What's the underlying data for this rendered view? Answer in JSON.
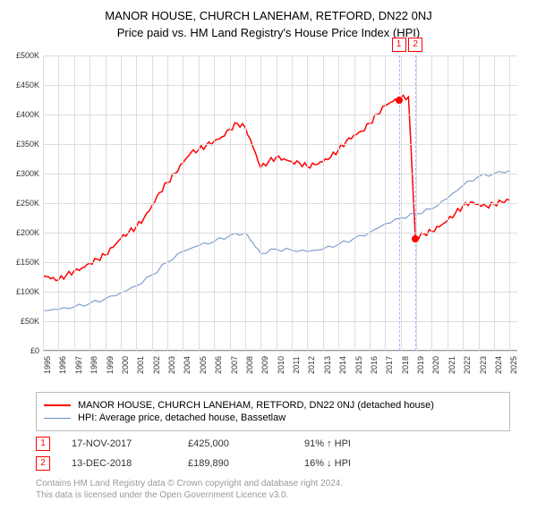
{
  "title": "MANOR HOUSE, CHURCH LANEHAM, RETFORD, DN22 0NJ",
  "subtitle": "Price paid vs. HM Land Registry's House Price Index (HPI)",
  "chart": {
    "type": "line",
    "background_color": "#ffffff",
    "grid_color": "#dddddd",
    "axis_color": "#999999",
    "label_fontsize": 9,
    "x": {
      "min": 1995,
      "max": 2025.5,
      "ticks": [
        1995,
        1996,
        1997,
        1998,
        1999,
        2000,
        2001,
        2002,
        2003,
        2004,
        2005,
        2006,
        2007,
        2008,
        2009,
        2010,
        2011,
        2012,
        2013,
        2014,
        2015,
        2016,
        2017,
        2018,
        2019,
        2020,
        2021,
        2022,
        2023,
        2024,
        2025
      ]
    },
    "y": {
      "min": 0,
      "max": 500000,
      "ticks": [
        0,
        50000,
        100000,
        150000,
        200000,
        250000,
        300000,
        350000,
        400000,
        450000,
        500000
      ],
      "tick_labels": [
        "£0",
        "£50K",
        "£100K",
        "£150K",
        "£200K",
        "£250K",
        "£300K",
        "£350K",
        "£400K",
        "£450K",
        "£500K"
      ]
    },
    "series": [
      {
        "name": "property",
        "label": "MANOR HOUSE, CHURCH LANEHAM, RETFORD, DN22 0NJ (detached house)",
        "color": "#ff0000",
        "line_width": 1.5,
        "data": [
          [
            1995,
            128000
          ],
          [
            1995.5,
            122000
          ],
          [
            1996,
            120000
          ],
          [
            1996.5,
            128000
          ],
          [
            1997,
            135000
          ],
          [
            1997.5,
            140000
          ],
          [
            1998,
            148000
          ],
          [
            1998.5,
            155000
          ],
          [
            1999,
            162000
          ],
          [
            1999.5,
            175000
          ],
          [
            2000,
            190000
          ],
          [
            2000.5,
            200000
          ],
          [
            2001,
            210000
          ],
          [
            2001.5,
            225000
          ],
          [
            2002,
            245000
          ],
          [
            2002.5,
            268000
          ],
          [
            2003,
            285000
          ],
          [
            2003.5,
            300000
          ],
          [
            2004,
            318000
          ],
          [
            2004.5,
            335000
          ],
          [
            2005,
            340000
          ],
          [
            2005.5,
            348000
          ],
          [
            2006,
            355000
          ],
          [
            2006.5,
            362000
          ],
          [
            2007,
            375000
          ],
          [
            2007.5,
            385000
          ],
          [
            2008,
            378000
          ],
          [
            2008.5,
            345000
          ],
          [
            2009,
            310000
          ],
          [
            2009.5,
            320000
          ],
          [
            2010,
            328000
          ],
          [
            2010.5,
            325000
          ],
          [
            2011,
            320000
          ],
          [
            2011.5,
            318000
          ],
          [
            2012,
            312000
          ],
          [
            2012.5,
            315000
          ],
          [
            2013,
            320000
          ],
          [
            2013.5,
            328000
          ],
          [
            2014,
            340000
          ],
          [
            2014.5,
            355000
          ],
          [
            2015,
            365000
          ],
          [
            2015.5,
            372000
          ],
          [
            2016,
            385000
          ],
          [
            2016.5,
            400000
          ],
          [
            2017,
            415000
          ],
          [
            2017.5,
            422000
          ],
          [
            2017.88,
            425000
          ],
          [
            2018,
            428000
          ],
          [
            2018.5,
            430000
          ],
          [
            2018.95,
            189890
          ],
          [
            2019,
            192000
          ],
          [
            2019.5,
            198000
          ],
          [
            2020,
            202000
          ],
          [
            2020.5,
            210000
          ],
          [
            2021,
            220000
          ],
          [
            2021.5,
            232000
          ],
          [
            2022,
            245000
          ],
          [
            2022.5,
            252000
          ],
          [
            2023,
            248000
          ],
          [
            2023.5,
            245000
          ],
          [
            2024,
            248000
          ],
          [
            2024.5,
            252000
          ],
          [
            2025,
            255000
          ]
        ]
      },
      {
        "name": "hpi",
        "label": "HPI: Average price, detached house, Bassetlaw",
        "color": "#6a8fc5",
        "line_width": 1,
        "data": [
          [
            1995,
            68000
          ],
          [
            1996,
            70000
          ],
          [
            1997,
            74000
          ],
          [
            1998,
            80000
          ],
          [
            1999,
            88000
          ],
          [
            2000,
            98000
          ],
          [
            2001,
            110000
          ],
          [
            2002,
            128000
          ],
          [
            2003,
            150000
          ],
          [
            2004,
            168000
          ],
          [
            2005,
            178000
          ],
          [
            2006,
            185000
          ],
          [
            2007,
            195000
          ],
          [
            2008,
            200000
          ],
          [
            2008.5,
            183000
          ],
          [
            2009,
            165000
          ],
          [
            2010,
            172000
          ],
          [
            2011,
            170000
          ],
          [
            2012,
            168000
          ],
          [
            2013,
            172000
          ],
          [
            2014,
            180000
          ],
          [
            2015,
            190000
          ],
          [
            2016,
            200000
          ],
          [
            2017,
            215000
          ],
          [
            2018,
            225000
          ],
          [
            2019,
            232000
          ],
          [
            2020,
            240000
          ],
          [
            2021,
            258000
          ],
          [
            2022,
            280000
          ],
          [
            2023,
            295000
          ],
          [
            2024,
            300000
          ],
          [
            2025,
            305000
          ]
        ]
      }
    ],
    "markers": [
      {
        "id": "1",
        "x": 2017.88,
        "y": 425000
      },
      {
        "id": "2",
        "x": 2018.95,
        "y": 189890
      }
    ]
  },
  "legend": {
    "items": [
      {
        "color": "#ff0000",
        "width": 2,
        "label_path": "chart.series.0.label"
      },
      {
        "color": "#6a8fc5",
        "width": 1,
        "label_path": "chart.series.1.label"
      }
    ]
  },
  "events": [
    {
      "id": "1",
      "date": "17-NOV-2017",
      "price": "£425,000",
      "hpi": "91% ↑ HPI"
    },
    {
      "id": "2",
      "date": "13-DEC-2018",
      "price": "£189,890",
      "hpi": "16% ↓ HPI"
    }
  ],
  "footer": {
    "line1": "Contains HM Land Registry data © Crown copyright and database right 2024.",
    "line2": "This data is licensed under the Open Government Licence v3.0."
  }
}
